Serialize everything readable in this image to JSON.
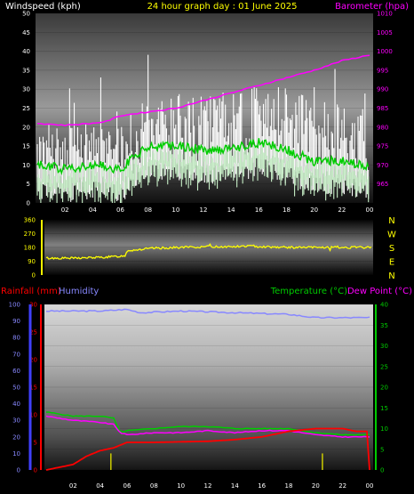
{
  "header": {
    "windspeed_label": "Windspeed (kph)",
    "title": "24 hour graph day : 01 June 2025",
    "barometer_label": "Barometer (hpa)"
  },
  "lower_header": {
    "rainfall_label": "Rainfall (mm)",
    "humidity_label": "Humidity",
    "temperature_label": "Temperature (°C)",
    "dewpoint_label": "Dew Point (°C)"
  },
  "compass": [
    "N",
    "W",
    "S",
    "E",
    "N"
  ],
  "colors": {
    "wind_gust": "#ffffff",
    "wind_avg": "#c8f0c8",
    "wind_avg_line": "#00cc00",
    "barometer": "#ff00ff",
    "direction": "#ffff00",
    "rainfall": "#ff0000",
    "humidity": "#8888ff",
    "temperature": "#00cc00",
    "dewpoint": "#ff00ff",
    "rain_rate": "#cccc00"
  },
  "chart_data": [
    {
      "type": "line",
      "name": "wind-and-barometer",
      "x_ticks": [
        "02",
        "04",
        "06",
        "08",
        "10",
        "12",
        "14",
        "16",
        "18",
        "20",
        "22",
        "00"
      ],
      "y_left": {
        "label": "Windspeed (kph)",
        "min": 0,
        "max": 50,
        "ticks": [
          0,
          5,
          10,
          15,
          20,
          25,
          30,
          35,
          40,
          45,
          50
        ]
      },
      "y_right": {
        "label": "Barometer (hpa)",
        "min": 960,
        "max": 1010,
        "ticks": [
          965,
          970,
          975,
          980,
          985,
          990,
          995,
          1000,
          1005,
          1010
        ]
      },
      "series": [
        {
          "name": "Windspeed (kph)",
          "axis": "left",
          "hours": [
            0,
            2,
            4,
            6,
            8,
            10,
            12,
            14,
            16,
            18,
            20,
            22,
            24
          ],
          "values": [
            15,
            14,
            15,
            14,
            18,
            19,
            19,
            20,
            21,
            21,
            18,
            17,
            16
          ]
        },
        {
          "name": "Average windspeed",
          "axis": "left",
          "hours": [
            0,
            2,
            4,
            6,
            8,
            10,
            12,
            14,
            16,
            18,
            20,
            22,
            24
          ],
          "values": [
            10,
            9,
            10,
            9,
            15,
            15,
            14,
            14,
            16,
            14,
            11,
            11,
            10
          ]
        },
        {
          "name": "Barometer (hpa)",
          "axis": "right",
          "hours": [
            0,
            2,
            4,
            5,
            6,
            8,
            10,
            12,
            14,
            16,
            18,
            20,
            22,
            24
          ],
          "values": [
            981,
            980.5,
            981,
            981.5,
            983,
            984,
            985,
            987,
            989,
            991,
            993,
            995,
            997.5,
            999
          ]
        }
      ]
    },
    {
      "type": "line",
      "name": "wind-direction",
      "y": {
        "min": 0,
        "max": 360,
        "ticks": [
          0,
          90,
          180,
          270,
          360
        ]
      },
      "series": [
        {
          "name": "Wind direction",
          "hours": [
            0,
            2,
            4,
            5,
            5.8,
            6,
            8,
            10,
            12,
            14,
            15,
            16,
            18,
            20,
            22,
            24
          ],
          "values": [
            110,
            110,
            115,
            120,
            125,
            160,
            175,
            180,
            185,
            185,
            190,
            185,
            180,
            180,
            180,
            180
          ]
        }
      ]
    },
    {
      "type": "line",
      "name": "rain-humidity-temperature",
      "y_humidity": {
        "label": "Humidity",
        "min": 0,
        "max": 100,
        "ticks": [
          0,
          10,
          20,
          30,
          40,
          50,
          60,
          70,
          80,
          90,
          100
        ]
      },
      "y_rain": {
        "label": "Rainfall (mm)",
        "min": 0,
        "max": 30,
        "ticks": [
          0,
          5,
          10,
          15,
          20,
          25,
          30
        ]
      },
      "y_temp": {
        "label": "Temperature (°C)",
        "min": 0,
        "max": 40,
        "ticks": [
          0,
          5,
          10,
          15,
          20,
          25,
          30,
          35,
          40
        ]
      },
      "series": [
        {
          "name": "Humidity",
          "axis": "humidity",
          "hours": [
            0,
            2,
            4,
            6,
            7,
            10,
            14,
            18,
            20,
            22,
            24
          ],
          "values": [
            96,
            96,
            96,
            97,
            95,
            96,
            95,
            94,
            92,
            92,
            92
          ]
        },
        {
          "name": "Rainfall (mm)",
          "axis": "rain",
          "hours": [
            0,
            1,
            2,
            3,
            4,
            5,
            6,
            8,
            10,
            12,
            14,
            16,
            18,
            20,
            22,
            23,
            23.8,
            24
          ],
          "values": [
            0,
            0.5,
            1,
            2.5,
            3.5,
            4,
            5,
            5,
            5.1,
            5.2,
            5.5,
            6,
            7,
            7.5,
            7.5,
            7,
            7,
            0
          ]
        },
        {
          "name": "Temperature (°C)",
          "axis": "temp",
          "hours": [
            0,
            2,
            4,
            5,
            5.5,
            6,
            8,
            10,
            12,
            14,
            16,
            18,
            20,
            22,
            24
          ],
          "values": [
            14,
            13,
            13,
            12.5,
            9,
            9.5,
            10,
            10.5,
            10.5,
            10,
            10,
            10,
            9,
            8.5,
            8.5
          ]
        },
        {
          "name": "Dew Point (°C)",
          "axis": "temp",
          "hours": [
            0,
            2,
            4,
            5,
            5.5,
            6,
            8,
            10,
            12,
            14,
            16,
            18,
            20,
            22,
            24
          ],
          "values": [
            13,
            12,
            11.5,
            11,
            9,
            8.5,
            9,
            9,
            9.5,
            9,
            9.5,
            9.5,
            8.5,
            8,
            8
          ]
        },
        {
          "name": "Rain rate",
          "axis": "rain",
          "hours": [
            4.8,
            20.5
          ],
          "values": [
            3,
            3
          ]
        }
      ]
    }
  ]
}
